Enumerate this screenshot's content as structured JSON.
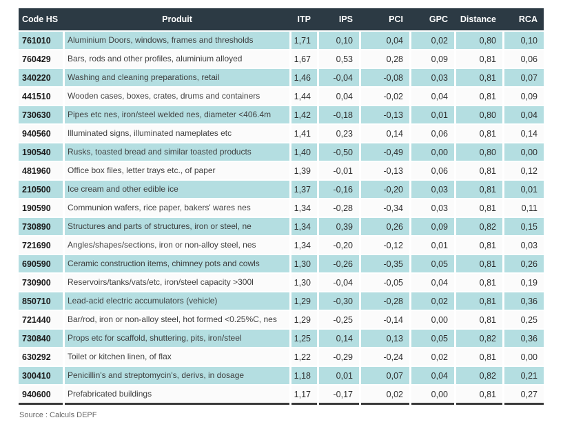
{
  "chart_data": {
    "type": "table",
    "columns": [
      "Code HS",
      "Produit",
      "ITP",
      "IPS",
      "PCI",
      "GPC",
      "Distance",
      "RCA"
    ],
    "rows": [
      {
        "code": "761010",
        "produit": "Aluminium Doors, windows, frames and thresholds",
        "itp": "1,71",
        "ips": "0,10",
        "pci": "0,04",
        "gpc": "0,02",
        "distance": "0,80",
        "rca": "0,10"
      },
      {
        "code": "760429",
        "produit": "Bars, rods and other profiles, aluminium alloyed",
        "itp": "1,67",
        "ips": "0,53",
        "pci": "0,28",
        "gpc": "0,09",
        "distance": "0,81",
        "rca": "0,06"
      },
      {
        "code": "340220",
        "produit": "Washing and cleaning preparations, retail",
        "itp": "1,46",
        "ips": "-0,04",
        "pci": "-0,08",
        "gpc": "0,03",
        "distance": "0,81",
        "rca": "0,07"
      },
      {
        "code": "441510",
        "produit": "Wooden cases, boxes, crates, drums and containers",
        "itp": "1,44",
        "ips": "0,04",
        "pci": "-0,02",
        "gpc": "0,04",
        "distance": "0,81",
        "rca": "0,09"
      },
      {
        "code": "730630",
        "produit": "Pipes etc nes, iron/steel welded nes, diameter <406.4m",
        "itp": "1,42",
        "ips": "-0,18",
        "pci": "-0,13",
        "gpc": "0,01",
        "distance": "0,80",
        "rca": "0,04"
      },
      {
        "code": "940560",
        "produit": "Illuminated signs, illuminated nameplates etc",
        "itp": "1,41",
        "ips": "0,23",
        "pci": "0,14",
        "gpc": "0,06",
        "distance": "0,81",
        "rca": "0,14"
      },
      {
        "code": "190540",
        "produit": "Rusks, toasted bread and similar toasted products",
        "itp": "1,40",
        "ips": "-0,50",
        "pci": "-0,49",
        "gpc": "0,00",
        "distance": "0,80",
        "rca": "0,00"
      },
      {
        "code": "481960",
        "produit": "Office box files, letter trays etc., of paper",
        "itp": "1,39",
        "ips": "-0,01",
        "pci": "-0,13",
        "gpc": "0,06",
        "distance": "0,81",
        "rca": "0,12"
      },
      {
        "code": "210500",
        "produit": "Ice cream and other edible ice",
        "itp": "1,37",
        "ips": "-0,16",
        "pci": "-0,20",
        "gpc": "0,03",
        "distance": "0,81",
        "rca": "0,01"
      },
      {
        "code": "190590",
        "produit": "Communion wafers, rice paper, bakers' wares nes",
        "itp": "1,34",
        "ips": "-0,28",
        "pci": "-0,34",
        "gpc": "0,03",
        "distance": "0,81",
        "rca": "0,11"
      },
      {
        "code": "730890",
        "produit": "Structures and parts of structures, iron or steel, ne",
        "itp": "1,34",
        "ips": "0,39",
        "pci": "0,26",
        "gpc": "0,09",
        "distance": "0,82",
        "rca": "0,15"
      },
      {
        "code": "721690",
        "produit": "Angles/shapes/sections, iron or non-alloy steel, nes",
        "itp": "1,34",
        "ips": "-0,20",
        "pci": "-0,12",
        "gpc": "0,01",
        "distance": "0,81",
        "rca": "0,03"
      },
      {
        "code": "690590",
        "produit": "Ceramic construction items, chimney pots and cowls",
        "itp": "1,30",
        "ips": "-0,26",
        "pci": "-0,35",
        "gpc": "0,05",
        "distance": "0,81",
        "rca": "0,26"
      },
      {
        "code": "730900",
        "produit": "Reservoirs/tanks/vats/etc, iron/steel capacity >300l",
        "itp": "1,30",
        "ips": "-0,04",
        "pci": "-0,05",
        "gpc": "0,04",
        "distance": "0,81",
        "rca": "0,19"
      },
      {
        "code": "850710",
        "produit": "Lead-acid electric accumulators (vehicle)",
        "itp": "1,29",
        "ips": "-0,30",
        "pci": "-0,28",
        "gpc": "0,02",
        "distance": "0,81",
        "rca": "0,36"
      },
      {
        "code": "721440",
        "produit": "Bar/rod, iron or non-alloy steel, hot formed <0.25%C, nes",
        "itp": "1,29",
        "ips": "-0,25",
        "pci": "-0,14",
        "gpc": "0,00",
        "distance": "0,81",
        "rca": "0,25"
      },
      {
        "code": "730840",
        "produit": "Props etc for scaffold, shuttering, pits, iron/steel",
        "itp": "1,25",
        "ips": "0,14",
        "pci": "0,13",
        "gpc": "0,05",
        "distance": "0,82",
        "rca": "0,36"
      },
      {
        "code": "630292",
        "produit": "Toilet or kitchen linen, of flax",
        "itp": "1,22",
        "ips": "-0,29",
        "pci": "-0,24",
        "gpc": "0,02",
        "distance": "0,81",
        "rca": "0,00"
      },
      {
        "code": "300410",
        "produit": "Penicillin's and streptomycin's, derivs, in dosage",
        "itp": "1,18",
        "ips": "0,01",
        "pci": "0,07",
        "gpc": "0,04",
        "distance": "0,82",
        "rca": "0,21"
      },
      {
        "code": "940600",
        "produit": "Prefabricated buildings",
        "itp": "1,17",
        "ips": "-0,17",
        "pci": "0,02",
        "gpc": "0,00",
        "distance": "0,81",
        "rca": "0,27"
      }
    ],
    "layout": {
      "striping": "alternating teal and white rows, first row teal",
      "legend_position": "none",
      "grid": "off"
    },
    "colors": {
      "header_bg": "#2c3a44",
      "header_text": "#ffffff",
      "row_teal": "#b4dee1",
      "row_white": "#fbfbfb",
      "bottom_border": "#3a3a3a"
    },
    "source": "Source : Calculs DEPF"
  }
}
